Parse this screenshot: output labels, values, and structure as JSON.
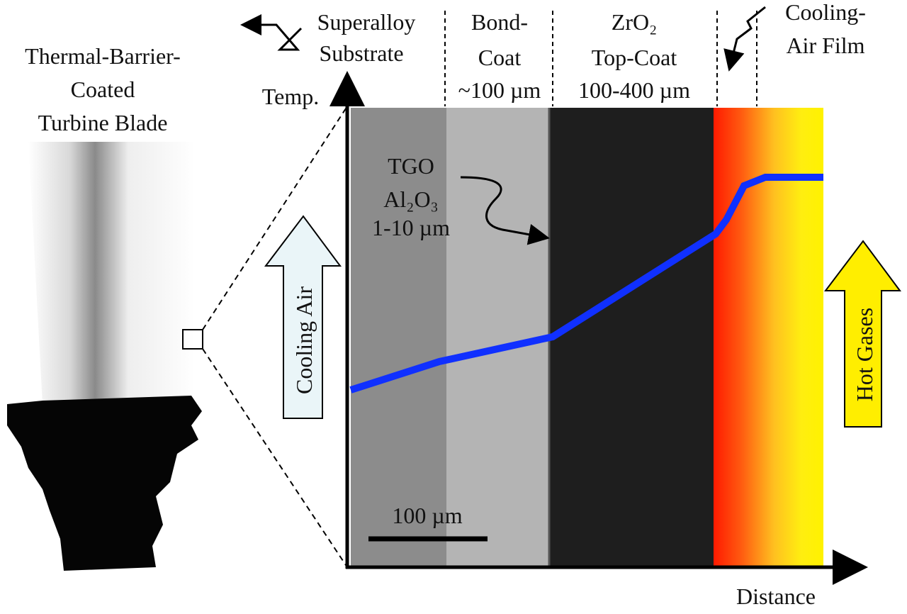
{
  "blade": {
    "title_lines": [
      "Thermal-Barrier-",
      "Coated",
      "Turbine Blade"
    ]
  },
  "layers": {
    "substrate": [
      "Superalloy",
      "Substrate"
    ],
    "bond_coat": [
      "Bond-",
      "Coat",
      "~100 µm"
    ],
    "top_coat": [
      "ZrO₂",
      "Top-Coat",
      "100-400 µm"
    ],
    "air_film": [
      "Cooling-",
      "Air Film"
    ]
  },
  "axes": {
    "y_label": "Temp.",
    "x_label": "Distance"
  },
  "tgo": [
    "TGO",
    "Al₂O₃",
    "1-10 µm"
  ],
  "arrows": {
    "cold": "Cooling Air",
    "hot": "Hot Gases"
  },
  "scale_bar": "100 µm"
}
